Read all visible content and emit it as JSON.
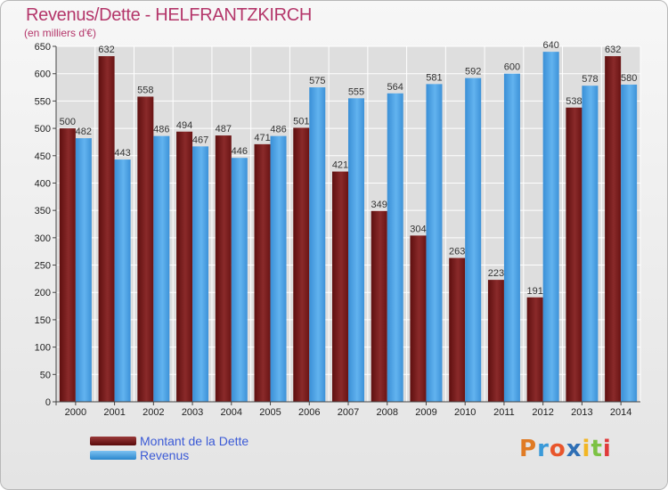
{
  "header": {
    "title": "Revenus/Dette - HELFRANTZKIRCH",
    "subtitle": "(en milliers d'€)"
  },
  "legend": {
    "items": [
      {
        "label": "Montant de la Dette",
        "color": "#7a1a1a"
      },
      {
        "label": "Revenus",
        "color": "#4da6e8"
      }
    ]
  },
  "logo": {
    "text": "Proxiti",
    "colors": [
      "#e07b24",
      "#3a9ad9",
      "#e8552b",
      "#2f6fb5",
      "#f2b624",
      "#7cc243",
      "#e03a3a"
    ]
  },
  "colors": {
    "debt": "#7a1a1a",
    "revenue": "#4da6e8",
    "title": "#b4366a",
    "grid": "#ffffff"
  },
  "chart_data": {
    "type": "bar",
    "title": "Revenus/Dette - HELFRANTZKIRCH",
    "ylabel": "(en milliers d'€)",
    "xlabel": "",
    "categories": [
      "2000",
      "2001",
      "2002",
      "2003",
      "2004",
      "2005",
      "2006",
      "2007",
      "2008",
      "2009",
      "2010",
      "2011",
      "2012",
      "2013",
      "2014"
    ],
    "series": [
      {
        "name": "Montant de la Dette",
        "values": [
          500,
          632,
          558,
          494,
          487,
          471,
          501,
          421,
          349,
          304,
          263,
          223,
          191,
          538,
          632
        ]
      },
      {
        "name": "Revenus",
        "values": [
          482,
          443,
          486,
          467,
          446,
          486,
          575,
          555,
          564,
          581,
          592,
          600,
          640,
          578,
          580
        ]
      }
    ],
    "ylim": [
      0,
      650
    ],
    "yticks": [
      0,
      50,
      100,
      150,
      200,
      250,
      300,
      350,
      400,
      450,
      500,
      550,
      600,
      650
    ],
    "grid": true,
    "legend_position": "bottom-left"
  }
}
